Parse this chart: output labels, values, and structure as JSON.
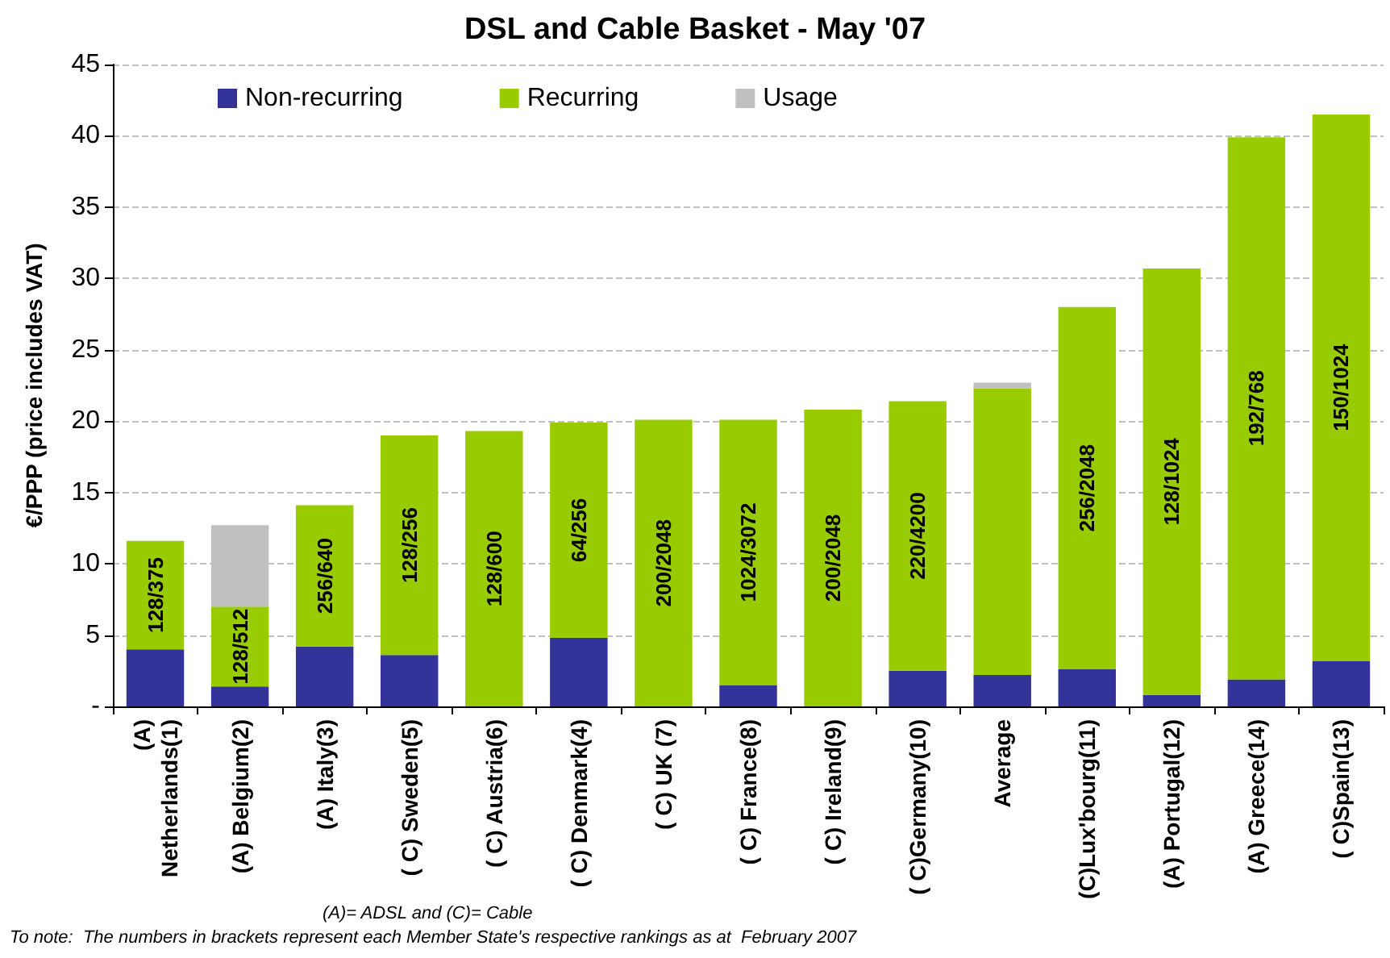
{
  "chart_data": {
    "type": "bar",
    "title": "DSL and Cable Basket - May '07",
    "ylabel": "€/PPP (price includes VAT)",
    "categories": [
      "(A)\nNetherlands(1)",
      "(A) Belgium(2)",
      "(A) Italy(3)",
      "( C) Sweden(5)",
      "( C) Austria(6)",
      "( C) Denmark(4)",
      "( C) UK (7)",
      "( C) France(8)",
      "( C) Ireland(9)",
      "( C)Germany(10)",
      "Average",
      "(C)Lux'bourg(11)",
      "(A) Portugal(12)",
      "(A) Greece(14)",
      "( C)Spain(13)"
    ],
    "stacked": true,
    "series": [
      {
        "name": "Non-recurring",
        "color": "#333399",
        "values": [
          4.0,
          1.4,
          4.2,
          3.6,
          0,
          4.8,
          0,
          1.5,
          0,
          2.5,
          2.2,
          2.6,
          0.8,
          1.9,
          3.2
        ]
      },
      {
        "name": "Recurring",
        "color": "#99cc00",
        "values": [
          7.6,
          5.6,
          9.9,
          15.4,
          19.3,
          15.1,
          20.1,
          18.6,
          20.8,
          18.9,
          20.1,
          25.4,
          29.9,
          38.0,
          38.3
        ],
        "value_labels": [
          "128/375",
          "128/512",
          "256/640",
          "128/256",
          "128/600",
          "64/256",
          "200/2048",
          "1024/3072",
          "200/2048",
          "220/4200",
          null,
          "256/2048",
          "128/1024",
          "192/768",
          "150/1024"
        ]
      },
      {
        "name": "Usage",
        "color": "#c0c0c0",
        "values": [
          0,
          5.7,
          0,
          0,
          0,
          0,
          0,
          0,
          0,
          0,
          0.4,
          0,
          0,
          0,
          0
        ]
      }
    ],
    "ylim": [
      0,
      45
    ],
    "yticks": [
      {
        "value": 0,
        "label": "-"
      },
      5,
      10,
      15,
      20,
      25,
      30,
      35,
      40,
      45
    ],
    "grid": "y",
    "legend": "top",
    "annotations": [
      "(A)= ADSL and (C)= Cable",
      "To note:  The numbers in brackets represent each Member State's respective rankings as at  February 2007"
    ]
  }
}
